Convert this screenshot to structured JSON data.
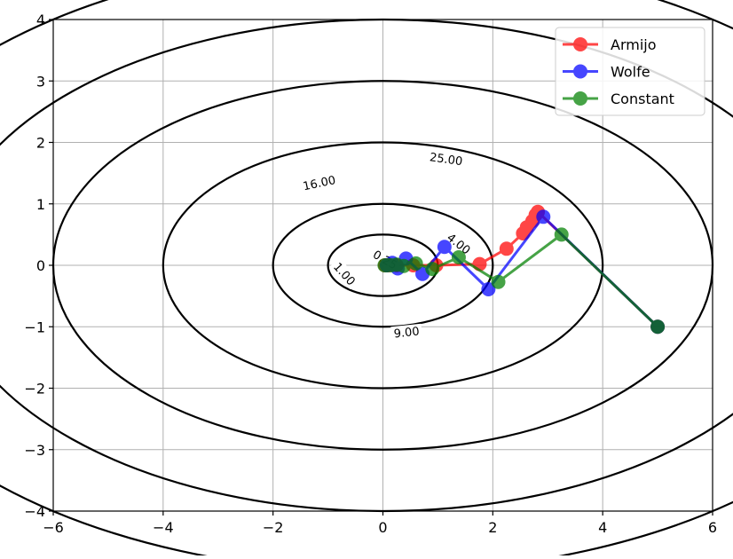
{
  "chart_data": {
    "type": "line",
    "xlim": [
      -6,
      6
    ],
    "ylim": [
      -4,
      4
    ],
    "xticks": [
      -6,
      -4,
      -2,
      0,
      2,
      4,
      6
    ],
    "yticks": [
      -4,
      -3,
      -2,
      -1,
      0,
      1,
      2,
      3,
      4
    ],
    "xtick_labels": [
      "−6",
      "−4",
      "−2",
      "0",
      "2",
      "4",
      "6"
    ],
    "ytick_labels": [
      "−4",
      "−3",
      "−2",
      "−1",
      "0",
      "1",
      "2",
      "3",
      "4"
    ],
    "grid": true,
    "legend_position": "top-right",
    "contours": {
      "function": "x^2/4 + y^2",
      "levels": [
        0.25,
        1.0,
        4.0,
        9.0,
        16.0,
        25.0
      ],
      "labels": [
        {
          "text": "0.25",
          "x": 0.04,
          "y": 0.09,
          "rotation": 30
        },
        {
          "text": "1.00",
          "x": -0.7,
          "y": -0.14,
          "rotation": 48
        },
        {
          "text": "4.00",
          "x": 1.38,
          "y": 0.35,
          "rotation": 38
        },
        {
          "text": "9.00",
          "x": 0.43,
          "y": -1.09,
          "rotation": -6
        },
        {
          "text": "16.00",
          "x": -1.16,
          "y": 1.34,
          "rotation": -12
        },
        {
          "text": "25.00",
          "x": 1.15,
          "y": 1.73,
          "rotation": 8
        }
      ],
      "color": "#000000"
    },
    "series": [
      {
        "name": "Armijo",
        "color": "#ff0000",
        "x": [
          5.0,
          2.82,
          2.78,
          2.72,
          2.62,
          2.55,
          2.25,
          1.76,
          0.97,
          0.55,
          0.25,
          0.1,
          0.04
        ],
        "y": [
          -1.0,
          0.87,
          0.82,
          0.72,
          0.62,
          0.52,
          0.27,
          0.02,
          0.0,
          0.0,
          0.0,
          0.0,
          0.0
        ]
      },
      {
        "name": "Wolfe",
        "color": "#0000ff",
        "x": [
          5.0,
          2.92,
          1.92,
          1.12,
          0.72,
          0.42,
          0.27,
          0.17,
          0.07
        ],
        "y": [
          -1.0,
          0.79,
          -0.39,
          0.3,
          -0.14,
          0.11,
          -0.05,
          0.04,
          0.0
        ]
      },
      {
        "name": "Constant",
        "color": "#008000",
        "x": [
          5.0,
          3.25,
          2.1,
          1.38,
          0.9,
          0.6,
          0.38,
          0.25,
          0.15,
          0.08,
          0.03
        ],
        "y": [
          -1.0,
          0.5,
          -0.27,
          0.13,
          -0.06,
          0.03,
          -0.01,
          0.01,
          0.0,
          0.0,
          0.0
        ]
      }
    ]
  }
}
